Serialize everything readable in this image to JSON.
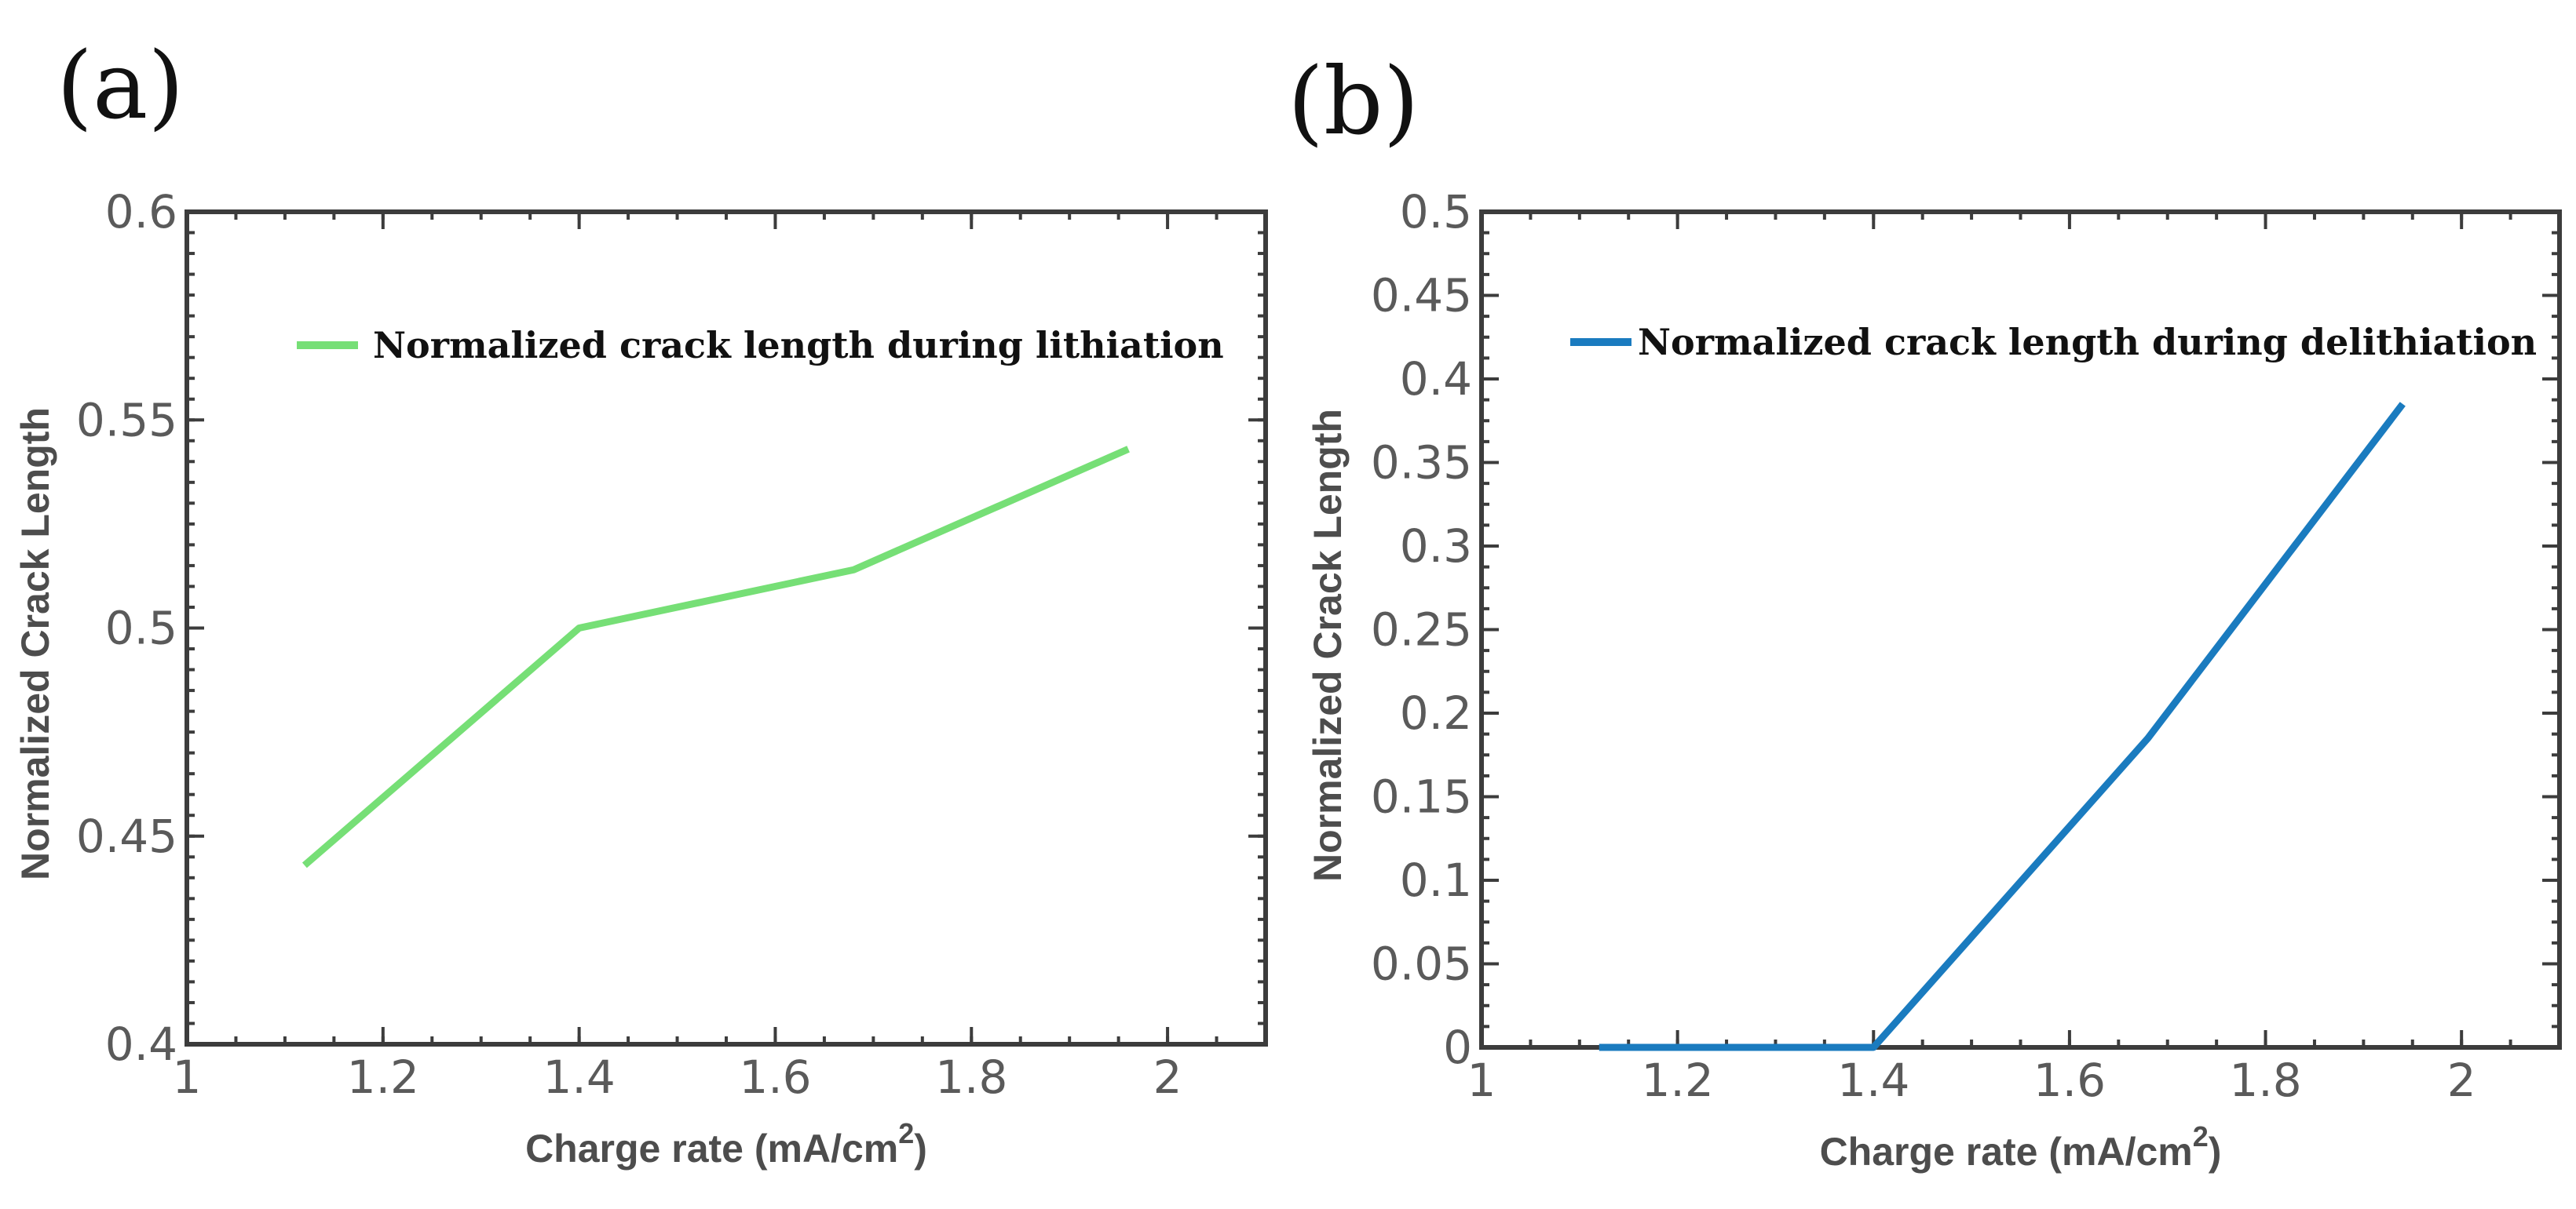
{
  "chart_data": [
    {
      "type": "line",
      "panel_label": "(a)",
      "title": "",
      "xlabel": "Charge rate (mA/cm",
      "xlabel_sup": "2",
      "xlabel_close": ")",
      "ylabel": "Normalized Crack Length",
      "xlim": [
        1,
        2.1
      ],
      "ylim": [
        0.4,
        0.6
      ],
      "xticks": [
        1,
        1.2,
        1.4,
        1.6,
        1.8,
        2
      ],
      "xtick_labels": [
        "1",
        "1.2",
        "1.4",
        "1.6",
        "1.8",
        "2"
      ],
      "yticks": [
        0.4,
        0.45,
        0.5,
        0.55,
        0.6
      ],
      "ytick_labels": [
        "0.4",
        "0.45",
        "0.5",
        "0.55",
        "0.6"
      ],
      "legend_position": "top",
      "series": [
        {
          "name": "Normalized crack length during lithiation",
          "color": "#76df76",
          "x": [
            1.12,
            1.4,
            1.68,
            1.96
          ],
          "y": [
            0.443,
            0.5,
            0.514,
            0.543
          ]
        }
      ]
    },
    {
      "type": "line",
      "panel_label": "(b)",
      "title": "",
      "xlabel": "Charge rate (mA/cm",
      "xlabel_sup": "2",
      "xlabel_close": ")",
      "ylabel": "Normalized Crack Length",
      "xlim": [
        1,
        2.1
      ],
      "ylim": [
        0,
        0.5
      ],
      "xticks": [
        1,
        1.2,
        1.4,
        1.6,
        1.8,
        2
      ],
      "xtick_labels": [
        "1",
        "1.2",
        "1.4",
        "1.6",
        "1.8",
        "2"
      ],
      "yticks": [
        0,
        0.05,
        0.1,
        0.15,
        0.2,
        0.25,
        0.3,
        0.35,
        0.4,
        0.45,
        0.5
      ],
      "ytick_labels": [
        "0",
        "0.05",
        "0.1",
        "0.15",
        "0.2",
        "0.25",
        "0.3",
        "0.35",
        "0.4",
        "0.45",
        "0.5"
      ],
      "legend_position": "top",
      "series": [
        {
          "name": "Normalized crack length during delithiation",
          "color": "#1a7bbf",
          "x": [
            1.12,
            1.4,
            1.68,
            1.94
          ],
          "y": [
            0,
            0,
            0.185,
            0.385
          ]
        }
      ]
    }
  ]
}
